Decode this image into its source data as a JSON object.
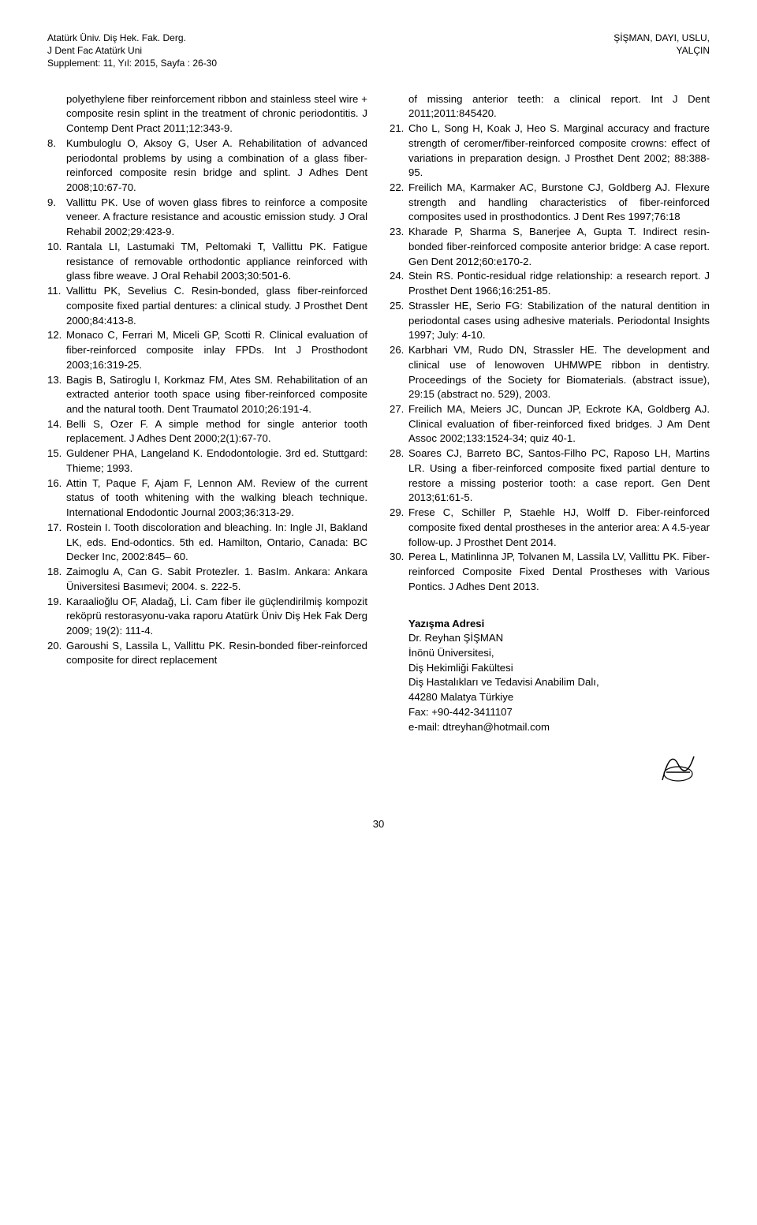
{
  "header": {
    "left_line1": "Atatürk Üniv. Diş Hek. Fak. Derg.",
    "left_line2": "J Dent Fac Atatürk Uni",
    "left_line3": "Supplement: 11, Yıl: 2015,  Sayfa : 26-30",
    "right_line1": "ŞİŞMAN, DAYI, USLU,",
    "right_line2": "YALÇIN"
  },
  "col1_intro": "polyethylene fiber reinforcement ribbon and stainless steel wire + composite resin splint in the treatment of chronic periodontitis. J Contemp Dent Pract 2011;12:343-9.",
  "col1_refs": [
    "8. Kumbuloglu O, Aksoy G, User A. Rehabilitation of advanced periodontal problems by using a combination of a glass fiber-reinforced composite resin bridge and splint. J Adhes Dent 2008;10:67-70.",
    "9. Vallittu PK. Use of woven glass fibres to reinforce a composite veneer. A fracture resistance and acoustic emission study. J Oral Rehabil 2002;29:423-9.",
    "10. Rantala LI, Lastumaki TM, Peltomaki T, Vallittu PK. Fatigue resistance of removable orthodontic appliance reinforced with glass fibre weave. J Oral Rehabil 2003;30:501-6.",
    "11. Vallittu PK, Sevelius C. Resin-bonded, glass fiber-reinforced composite fixed partial dentures: a clinical study. J Prosthet Dent 2000;84:413-8.",
    "12. Monaco C, Ferrari M, Miceli GP, Scotti R. Clinical evaluation of fiber-reinforced composite inlay FPDs. Int J Prosthodont 2003;16:319-25.",
    "13. Bagis B, Satiroglu I, Korkmaz FM, Ates SM. Rehabilitation of an extracted anterior tooth space using fiber-reinforced composite and the natural tooth. Dent Traumatol 2010;26:191-4.",
    "14. Belli S, Ozer F. A simple method for single anterior tooth replacement. J Adhes Dent 2000;2(1):67-70.",
    "15. Guldener PHA, Langeland K. Endodontologie. 3rd ed. Stuttgard: Thieme; 1993.",
    "16. Attin T, Paque F, Ajam F, Lennon AM. Review of the current status of tooth whitening with the walking bleach technique. International Endodontic Journal 2003;36:313-29.",
    "17. Rostein I. Tooth discoloration and bleaching. In: Ingle JI, Bakland LK, eds. End-odontics. 5th ed. Hamilton, Ontario, Canada: BC Decker Inc, 2002:845– 60.",
    "18. Zaimoglu A, Can G. Sabit Protezler. 1. BasIm. Ankara: Ankara Üniversitesi Basımevi; 2004. s. 222-5.",
    "19. Karaalioğlu OF, Aladağ, Lİ.  Cam fiber ile güçlendirilmiş kompozit reköprü restorasyonu-vaka raporu Atatürk Üniv Diş Hek Fak Derg  2009; 19(2): 111-4.",
    "20. Garoushi S, Lassila L, Vallittu PK. Resin-bonded fiber-reinforced composite for direct replacement"
  ],
  "col2_intro": "of missing anterior teeth: a clinical report. Int J Dent 2011;2011:845420.",
  "col2_refs": [
    "21. Cho L, Song H, Koak J, Heo S. Marginal accuracy and fracture strength of ceromer/fiber-reinforced composite crowns: effect of variations in preparation design. J Prosthet Dent 2002; 88:388-95.",
    "22. Freilich MA, Karmaker AC, Burstone CJ, Goldberg AJ. Flexure strength and handling characteristics of fiber-reinforced composites used in prosthodontics. J Dent Res 1997;76:18",
    "23. Kharade P, Sharma S, Banerjee A, Gupta T. Indirect resin-bonded fiber-reinforced composite anterior bridge: A case report. Gen Dent 2012;60:e170-2.",
    "24. Stein RS. Pontic-residual ridge relationship: a research report. J Prosthet Dent 1966;16:251-85.",
    "25. Strassler HE, Serio FG: Stabilization of the natural dentition in periodontal cases using adhesive materials. Periodontal Insights 1997; July: 4-10.",
    "26. Karbhari VM, Rudo DN, Strassler HE. The development and clinical use of lenowoven UHMWPE ribbon in dentistry. Proceedings of the Society for Biomaterials. (abstract issue), 29:15 (abstract no. 529), 2003.",
    "27. Freilich MA, Meiers JC, Duncan JP, Eckrote KA, Goldberg AJ. Clinical evaluation of fiber-reinforced fixed bridges. J Am Dent Assoc 2002;133:1524-34; quiz 40-1.",
    "28. Soares CJ, Barreto BC, Santos-Filho PC, Raposo LH, Martins LR. Using a fiber-reinforced composite fixed partial denture to restore a missing posterior tooth: a case report. Gen Dent 2013;61:61-5.",
    "29. Frese C, Schiller P, Staehle HJ, Wolff D. Fiber-reinforced composite fixed dental prostheses in the anterior area: A 4.5-year follow-up. J Prosthet Dent 2014.",
    "30. Perea L, Matinlinna JP, Tolvanen M, Lassila LV, Vallittu PK. Fiber-reinforced Composite Fixed Dental Prostheses with Various Pontics. J Adhes Dent 2013."
  ],
  "contact": {
    "title": "Yazışma Adresi",
    "name": "Dr. Reyhan ŞİŞMAN",
    "univ": "İnönü Üniversitesi,",
    "faculty": "Diş Hekimliği Fakültesi",
    "dept": "Diş Hastalıkları ve Tedavisi Anabilim Dalı,",
    "city": "44280  Malatya  Türkiye",
    "fax": "Fax: +90-442-3411107",
    "email": "e-mail: dtreyhan@hotmail.com"
  },
  "page_number": "30"
}
